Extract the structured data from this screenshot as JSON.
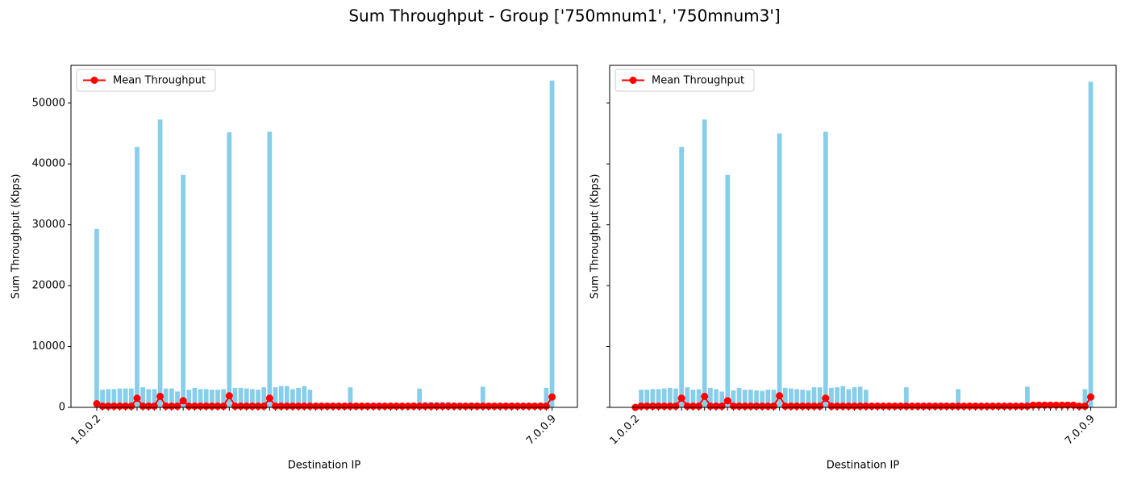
{
  "title": "Sum Throughput - Group ['750mnum1', '750mnum3']",
  "chart_data": [
    {
      "type": "bar",
      "xlabel": "Destination IP",
      "ylabel": "Sum Throughput (Kbps)",
      "categories": [
        "1.0.0.2",
        null,
        null,
        null,
        null,
        null,
        null,
        null,
        null,
        null,
        null,
        null,
        null,
        null,
        null,
        null,
        null,
        null,
        null,
        null,
        null,
        null,
        null,
        null,
        null,
        null,
        null,
        null,
        null,
        null,
        null,
        null,
        null,
        null,
        null,
        null,
        null,
        null,
        null,
        null,
        null,
        null,
        null,
        null,
        null,
        null,
        null,
        null,
        null,
        null,
        null,
        null,
        null,
        null,
        null,
        null,
        null,
        null,
        null,
        null,
        null,
        null,
        null,
        null,
        null,
        null,
        null,
        null,
        null,
        null,
        null,
        null,
        null,
        null,
        null,
        null,
        null,
        null,
        null,
        "7.0.0.9"
      ],
      "values": [
        29300,
        2900,
        3000,
        3000,
        3100,
        3100,
        3100,
        42800,
        3300,
        3000,
        3000,
        47300,
        3100,
        3100,
        2600,
        38200,
        2900,
        3200,
        3000,
        3000,
        2900,
        2900,
        3000,
        45200,
        3200,
        3200,
        3100,
        3000,
        2900,
        3300,
        45300,
        3300,
        3500,
        3500,
        3000,
        3200,
        3500,
        2900,
        200,
        200,
        200,
        200,
        200,
        200,
        3300,
        200,
        200,
        200,
        200,
        200,
        200,
        200,
        200,
        200,
        200,
        800,
        3100,
        900,
        900,
        900,
        900,
        900,
        800,
        200,
        200,
        800,
        800,
        3400,
        200,
        200,
        700,
        700,
        700,
        200,
        200,
        200,
        200,
        800,
        3200,
        53700
      ],
      "color": "#87ceeb",
      "line": {
        "name": "Mean Throughput",
        "color": "#ff0000",
        "values": [
          600,
          200,
          200,
          200,
          200,
          200,
          200,
          1500,
          200,
          200,
          200,
          1800,
          200,
          200,
          200,
          1100,
          200,
          200,
          200,
          200,
          200,
          200,
          200,
          1900,
          200,
          200,
          200,
          200,
          200,
          200,
          1500,
          200,
          200,
          200,
          200,
          200,
          200,
          200,
          200,
          200,
          200,
          200,
          200,
          200,
          200,
          200,
          200,
          200,
          200,
          200,
          200,
          200,
          200,
          200,
          200,
          200,
          200,
          200,
          200,
          200,
          200,
          200,
          200,
          200,
          200,
          200,
          200,
          200,
          200,
          200,
          200,
          200,
          200,
          200,
          200,
          200,
          200,
          200,
          200,
          1700
        ]
      },
      "ylim": [
        0,
        56200
      ],
      "yticks": [
        0,
        10000,
        20000,
        30000,
        40000,
        50000
      ],
      "legend": "upper left",
      "show_ytick_labels": true
    },
    {
      "type": "bar",
      "xlabel": "Destination IP",
      "ylabel": "Sum Throughput (Kbps)",
      "categories": [
        "1.0.0.2",
        null,
        null,
        null,
        null,
        null,
        null,
        null,
        null,
        null,
        null,
        null,
        null,
        null,
        null,
        null,
        null,
        null,
        null,
        null,
        null,
        null,
        null,
        null,
        null,
        null,
        null,
        null,
        null,
        null,
        null,
        null,
        null,
        null,
        null,
        null,
        null,
        null,
        null,
        null,
        null,
        null,
        null,
        null,
        null,
        null,
        null,
        null,
        null,
        null,
        null,
        null,
        null,
        null,
        null,
        null,
        null,
        null,
        null,
        null,
        null,
        null,
        null,
        null,
        null,
        null,
        null,
        null,
        null,
        null,
        null,
        null,
        null,
        null,
        null,
        null,
        null,
        null,
        null,
        "7.0.0.9"
      ],
      "values": [
        100,
        2900,
        2900,
        3000,
        3000,
        3100,
        3200,
        3100,
        42800,
        3300,
        2900,
        3000,
        47300,
        3200,
        3000,
        2600,
        38200,
        2800,
        3200,
        2900,
        2900,
        2800,
        2700,
        2900,
        2900,
        45000,
        3200,
        3100,
        3000,
        2900,
        2800,
        3300,
        3300,
        45300,
        3200,
        3300,
        3500,
        3000,
        3300,
        3400,
        2900,
        200,
        200,
        200,
        200,
        200,
        200,
        3300,
        200,
        200,
        200,
        200,
        200,
        200,
        200,
        200,
        3000,
        200,
        200,
        200,
        200,
        200,
        200,
        200,
        200,
        200,
        200,
        200,
        3400,
        200,
        200,
        200,
        200,
        200,
        200,
        200,
        200,
        200,
        3000,
        53500
      ],
      "color": "#87ceeb",
      "line": {
        "name": "Mean Throughput",
        "color": "#ff0000",
        "values": [
          0,
          200,
          200,
          200,
          200,
          200,
          200,
          200,
          1500,
          200,
          200,
          200,
          1800,
          200,
          200,
          200,
          1100,
          200,
          200,
          200,
          200,
          200,
          200,
          200,
          200,
          1900,
          200,
          200,
          200,
          200,
          200,
          200,
          200,
          1500,
          200,
          200,
          200,
          200,
          200,
          200,
          200,
          200,
          200,
          200,
          200,
          200,
          200,
          200,
          200,
          200,
          200,
          200,
          200,
          200,
          200,
          200,
          200,
          200,
          200,
          200,
          200,
          200,
          200,
          200,
          200,
          200,
          200,
          200,
          200,
          350,
          350,
          350,
          350,
          350,
          350,
          350,
          350,
          200,
          200,
          1700
        ]
      },
      "ylim": [
        0,
        56200
      ],
      "yticks": [
        0,
        10000,
        20000,
        30000,
        40000,
        50000
      ],
      "legend": "upper left",
      "show_ytick_labels": false
    }
  ]
}
